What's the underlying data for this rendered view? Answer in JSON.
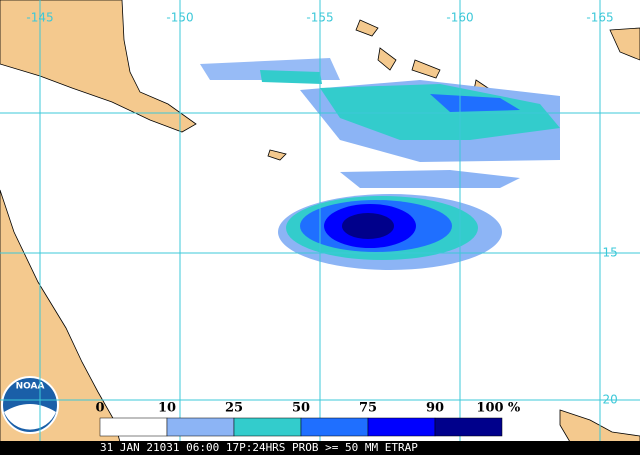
{
  "map": {
    "longitude_labels": [
      -145,
      -150,
      -155,
      -160,
      -165
    ],
    "latitude_labels": [
      -15,
      -20
    ],
    "legend": {
      "ticks": [
        0,
        10,
        25,
        50,
        75,
        90,
        100
      ],
      "unit": "%",
      "colors": [
        "#ffffff",
        "#8cb4f5",
        "#33cccc",
        "#1f6fff",
        "#0000ff",
        "#00008b"
      ]
    },
    "caption": "31 JAN 21031 06:00 17P:24HRS PROB >= 50 MM ETRAP",
    "logo": "NOAA"
  }
}
